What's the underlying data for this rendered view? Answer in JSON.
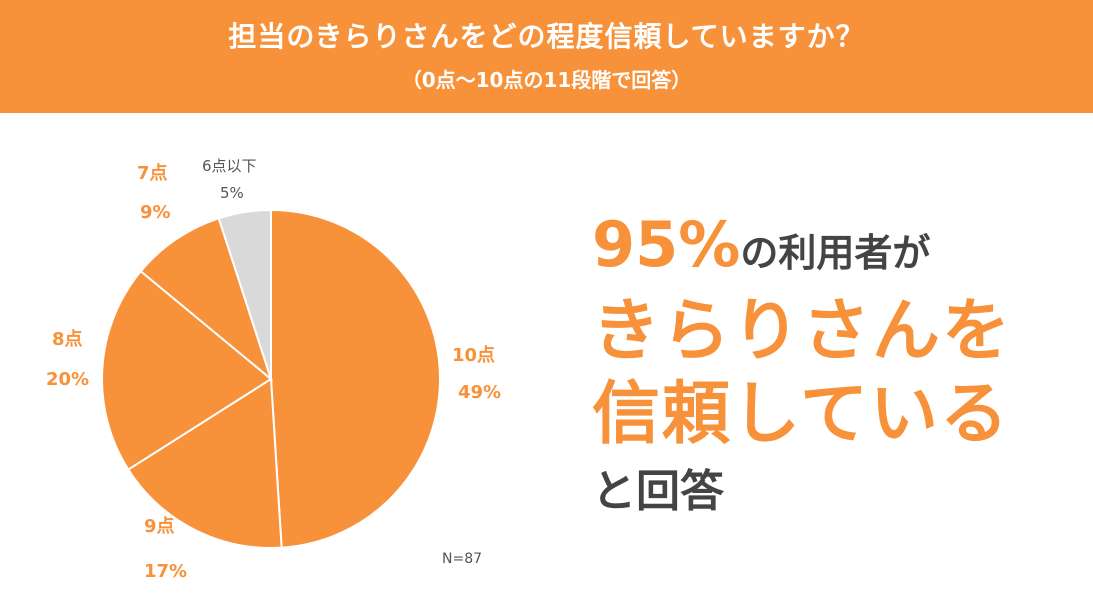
{
  "header": {
    "title": "担当のきらりさんをどの程度信頼していますか？",
    "subtitle": "（0点〜10点の11段階で回答）"
  },
  "chart_data": {
    "type": "pie",
    "slices": [
      {
        "label": "10点",
        "value": 49,
        "value_label": "49%",
        "color": "#F7923A"
      },
      {
        "label": "9点",
        "value": 17,
        "value_label": "17%",
        "color": "#F7923A"
      },
      {
        "label": "8点",
        "value": 20,
        "value_label": "20%",
        "color": "#F7923A"
      },
      {
        "label": "7点",
        "value": 9,
        "value_label": "9%",
        "color": "#F7923A"
      },
      {
        "label": "6点以下",
        "value": 5,
        "value_label": "5%",
        "color": "#D9D9D9"
      }
    ],
    "note": "N=87"
  },
  "headline": {
    "pct": "95%",
    "line1_rest": "の利用者が",
    "line2": "きらりさんを",
    "line3": "信頼している",
    "line4": "と回答"
  },
  "colors": {
    "accent": "#F7923A",
    "gray_slice": "#D9D9D9",
    "text_dark": "#444444"
  }
}
